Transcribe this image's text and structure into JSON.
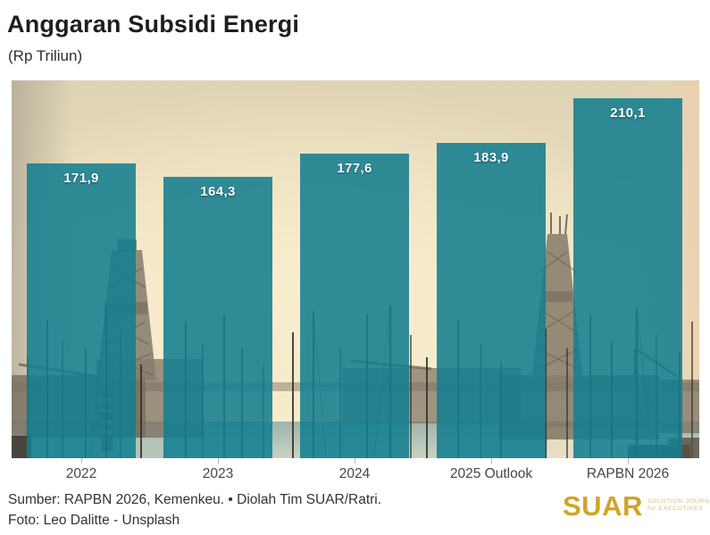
{
  "title": "Anggaran Subsidi Energi",
  "subtitle": "(Rp Triliun)",
  "chart_data": {
    "type": "bar",
    "title": "Anggaran Subsidi Energi",
    "ylabel": "Rp Triliun",
    "categories": [
      "2022",
      "2023",
      "2024",
      "2025 Outlook",
      "RAPBN 2026"
    ],
    "values": [
      171.9,
      164.3,
      177.6,
      183.9,
      210.1
    ],
    "value_labels": [
      "171,9",
      "164,3",
      "177,6",
      "183,9",
      "210,1"
    ],
    "ylim": [
      0,
      220.4
    ],
    "grid": false,
    "legend": false,
    "bar_color": "#137E90",
    "bar_opacity": 0.88,
    "value_label_color": "#ffffff",
    "background": "photo of drilling rigs and harbor at sunset"
  },
  "footer": {
    "source_line": "Sumber: RAPBN 2026, Kemenkeu. • Diolah Tim SUAR/Ratri.",
    "photo_line": "Foto: Leo Dalitte - Unsplash"
  },
  "logo": {
    "wordmark": "SUAR",
    "tagline_line1": "SOLUTION JOURNALISM",
    "tagline_line2": "for EXECUTIVES",
    "color": "#d2a42a"
  }
}
